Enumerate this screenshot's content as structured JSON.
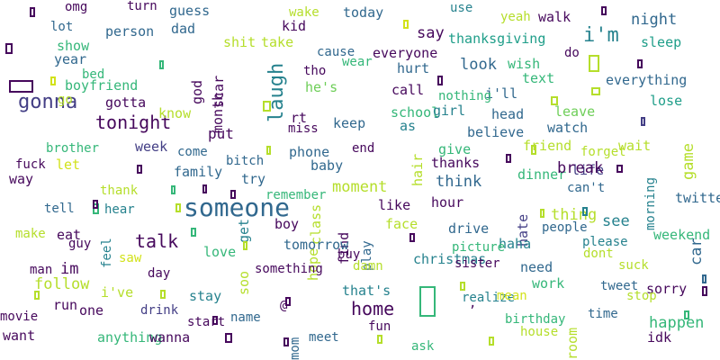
{
  "palette": {
    "dark_purple": "#46085c",
    "indigo": "#433e85",
    "blue": "#31688e",
    "teal": "#26828e",
    "green_teal": "#1f9e89",
    "green": "#35b779",
    "lime": "#6ece58",
    "yellow_green": "#b5de2b",
    "yellow": "#d2e21b"
  },
  "words": [
    {
      "t": "omg",
      "c": "#46085c"
    },
    {
      "t": "turn",
      "c": "#46085c"
    },
    {
      "t": "guess",
      "c": "#31688e"
    },
    {
      "t": "wake",
      "c": "#b5de2b"
    },
    {
      "t": "today",
      "c": "#31688e"
    },
    {
      "t": "use",
      "c": "#26828e"
    },
    {
      "t": "yeah",
      "c": "#b5de2b"
    },
    {
      "t": "walk",
      "c": "#46085c"
    },
    {
      "t": "night",
      "c": "#31688e"
    },
    {
      "t": "lot",
      "c": "#31688e"
    },
    {
      "t": "person",
      "c": "#31688e"
    },
    {
      "t": "dad",
      "c": "#31688e"
    },
    {
      "t": "kid",
      "c": "#46085c"
    },
    {
      "t": "say",
      "c": "#46085c"
    },
    {
      "t": "thanksgiving",
      "c": "#1f9e89"
    },
    {
      "t": "i'm",
      "c": "#26828e"
    },
    {
      "t": "sleep",
      "c": "#1f9e89"
    },
    {
      "t": "show",
      "c": "#35b779"
    },
    {
      "t": "shit",
      "c": "#b5de2b"
    },
    {
      "t": "take",
      "c": "#b5de2b"
    },
    {
      "t": "cause",
      "c": "#31688e"
    },
    {
      "t": "everyone",
      "c": "#46085c"
    },
    {
      "t": "year",
      "c": "#31688e"
    },
    {
      "t": "god",
      "c": "#46085c"
    },
    {
      "t": "wear",
      "c": "#35b779"
    },
    {
      "t": "wish",
      "c": "#35b779"
    },
    {
      "t": "do",
      "c": "#46085c"
    },
    {
      "t": "bed",
      "c": "#35b779"
    },
    {
      "t": "scar",
      "c": "#46085c"
    },
    {
      "t": "tho",
      "c": "#46085c"
    },
    {
      "t": "hurt",
      "c": "#31688e"
    },
    {
      "t": "look",
      "c": "#31688e"
    },
    {
      "t": "text",
      "c": "#35b779"
    },
    {
      "t": "everything",
      "c": "#31688e"
    },
    {
      "t": "boyfriend",
      "c": "#35b779"
    },
    {
      "t": "laugh",
      "c": "#26828e"
    },
    {
      "t": "he's",
      "c": "#6ece58"
    },
    {
      "t": "call",
      "c": "#46085c"
    },
    {
      "t": "i'll",
      "c": "#31688e"
    },
    {
      "t": "gonna",
      "c": "#433e85"
    },
    {
      "t": "go",
      "c": "#b5de2b"
    },
    {
      "t": "gotta",
      "c": "#46085c"
    },
    {
      "t": "month",
      "c": "#46085c"
    },
    {
      "t": "nothing",
      "c": "#35b779"
    },
    {
      "t": "lose",
      "c": "#1f9e89"
    },
    {
      "t": "tonight",
      "c": "#46085c"
    },
    {
      "t": "know",
      "c": "#b5de2b"
    },
    {
      "t": "rt",
      "c": "#46085c"
    },
    {
      "t": "keep",
      "c": "#31688e"
    },
    {
      "t": "school",
      "c": "#35b779"
    },
    {
      "t": "girl",
      "c": "#26828e"
    },
    {
      "t": "head",
      "c": "#31688e"
    },
    {
      "t": "leave",
      "c": "#6ece58"
    },
    {
      "t": "put",
      "c": "#46085c"
    },
    {
      "t": "miss",
      "c": "#46085c"
    },
    {
      "t": "as",
      "c": "#26828e"
    },
    {
      "t": "believe",
      "c": "#31688e"
    },
    {
      "t": "watch",
      "c": "#31688e"
    },
    {
      "t": "game",
      "c": "#b5de2b"
    },
    {
      "t": "brother",
      "c": "#35b779"
    },
    {
      "t": "week",
      "c": "#433e85"
    },
    {
      "t": "come",
      "c": "#31688e"
    },
    {
      "t": "phone",
      "c": "#31688e"
    },
    {
      "t": "end",
      "c": "#46085c"
    },
    {
      "t": "hair",
      "c": "#b5de2b"
    },
    {
      "t": "give",
      "c": "#35b779"
    },
    {
      "t": "friend",
      "c": "#b5de2b"
    },
    {
      "t": "forget",
      "c": "#b5de2b"
    },
    {
      "t": "wait",
      "c": "#b5de2b"
    },
    {
      "t": "fuck",
      "c": "#46085c"
    },
    {
      "t": "let",
      "c": "#d2e21b"
    },
    {
      "t": "bitch",
      "c": "#31688e"
    },
    {
      "t": "baby",
      "c": "#31688e"
    },
    {
      "t": "thanks",
      "c": "#46085c"
    },
    {
      "t": "dinner",
      "c": "#35b779"
    },
    {
      "t": "life",
      "c": "#433e85"
    },
    {
      "t": "way",
      "c": "#46085c"
    },
    {
      "t": "family",
      "c": "#31688e"
    },
    {
      "t": "try",
      "c": "#31688e"
    },
    {
      "t": "moment",
      "c": "#b5de2b"
    },
    {
      "t": "think",
      "c": "#31688e"
    },
    {
      "t": "can't",
      "c": "#31688e"
    },
    {
      "t": "morning",
      "c": "#26828e"
    },
    {
      "t": "thank",
      "c": "#b5de2b"
    },
    {
      "t": "remember",
      "c": "#35b779"
    },
    {
      "t": "hour",
      "c": "#46085c"
    },
    {
      "t": "twitter",
      "c": "#31688e"
    },
    {
      "t": "tell",
      "c": "#31688e"
    },
    {
      "t": "hear",
      "c": "#26828e"
    },
    {
      "t": "someone",
      "c": "#31688e"
    },
    {
      "t": "get",
      "c": "#26828e"
    },
    {
      "t": "class",
      "c": "#b5de2b"
    },
    {
      "t": "like",
      "c": "#46085c"
    },
    {
      "t": "hate",
      "c": "#433e85"
    },
    {
      "t": "thing",
      "c": "#b5de2b"
    },
    {
      "t": "see",
      "c": "#26828e"
    },
    {
      "t": "feel",
      "c": "#26828e"
    },
    {
      "t": "boy",
      "c": "#46085c"
    },
    {
      "t": "play",
      "c": "#31688e"
    },
    {
      "t": "face",
      "c": "#b5de2b"
    },
    {
      "t": "drive",
      "c": "#31688e"
    },
    {
      "t": "people",
      "c": "#31688e"
    },
    {
      "t": "car",
      "c": "#31688e"
    },
    {
      "t": "make",
      "c": "#b5de2b"
    },
    {
      "t": "eat",
      "c": "#46085c"
    },
    {
      "t": "talk",
      "c": "#46085c"
    },
    {
      "t": "love",
      "c": "#35b779"
    },
    {
      "t": "find",
      "c": "#46085c"
    },
    {
      "t": "haha",
      "c": "#26828e"
    },
    {
      "t": "please",
      "c": "#26828e"
    },
    {
      "t": "weekend",
      "c": "#35b779"
    },
    {
      "t": "guy",
      "c": "#46085c"
    },
    {
      "t": "saw",
      "c": "#d2e21b"
    },
    {
      "t": "tomorrow",
      "c": "#31688e"
    },
    {
      "t": "buy",
      "c": "#46085c"
    },
    {
      "t": "picture",
      "c": "#35b779"
    },
    {
      "t": "dont",
      "c": "#b5de2b"
    },
    {
      "t": "soo",
      "c": "#b5de2b"
    },
    {
      "t": "hope",
      "c": "#b5de2b"
    },
    {
      "t": "christmas",
      "c": "#26828e"
    },
    {
      "t": "suck",
      "c": "#b5de2b"
    },
    {
      "t": "man",
      "c": "#46085c"
    },
    {
      "t": "im",
      "c": "#46085c"
    },
    {
      "t": "day",
      "c": "#46085c"
    },
    {
      "t": "something",
      "c": "#46085c"
    },
    {
      "t": "damn",
      "c": "#b5de2b"
    },
    {
      "t": "sister",
      "c": "#46085c"
    },
    {
      "t": "need",
      "c": "#31688e"
    },
    {
      "t": "follow",
      "c": "#b5de2b"
    },
    {
      "t": "work",
      "c": "#35b779"
    },
    {
      "t": "tweet",
      "c": "#31688e"
    },
    {
      "t": "sorry",
      "c": "#46085c"
    },
    {
      "t": "i've",
      "c": "#b5de2b"
    },
    {
      "t": "stay",
      "c": "#26828e"
    },
    {
      "t": "that's",
      "c": "#26828e"
    },
    {
      "t": "realize",
      "c": "#26828e"
    },
    {
      "t": "mean",
      "c": "#d2e21b"
    },
    {
      "t": "stop",
      "c": "#b5de2b"
    },
    {
      "t": "run",
      "c": "#46085c"
    },
    {
      "t": "one",
      "c": "#46085c"
    },
    {
      "t": "drink",
      "c": "#433e85"
    },
    {
      "t": "home",
      "c": "#46085c"
    },
    {
      "t": "time",
      "c": "#31688e"
    },
    {
      "t": "movie",
      "c": "#46085c"
    },
    {
      "t": "start",
      "c": "#46085c"
    },
    {
      "t": "name",
      "c": "#31688e"
    },
    {
      "t": "mom",
      "c": "#31688e"
    },
    {
      "t": "fun",
      "c": "#46085c"
    },
    {
      "t": "birthday",
      "c": "#35b779"
    },
    {
      "t": "room",
      "c": "#b5de2b"
    },
    {
      "t": "happen",
      "c": "#35b779"
    },
    {
      "t": "want",
      "c": "#46085c"
    },
    {
      "t": "anything",
      "c": "#35b779"
    },
    {
      "t": "wanna",
      "c": "#46085c"
    },
    {
      "t": "meet",
      "c": "#31688e"
    },
    {
      "t": "ask",
      "c": "#35b779"
    },
    {
      "t": "house",
      "c": "#b5de2b"
    },
    {
      "t": "idk",
      "c": "#46085c"
    },
    {
      "t": "break",
      "c": "#46085c"
    },
    {
      "t": "@",
      "c": "#46085c"
    },
    {
      "t": ",",
      "c": "#46085c"
    },
    {
      "t": "*",
      "c": "#d2e21b"
    }
  ],
  "glyph_boxes": [
    {
      "c": "#46085c"
    },
    {
      "c": "#46085c"
    },
    {
      "c": "#d2e21b"
    },
    {
      "c": "#46085c"
    },
    {
      "c": "#35b779"
    },
    {
      "c": "#b5de2b"
    },
    {
      "c": "#46085c"
    },
    {
      "c": "#46085c"
    },
    {
      "c": "#d2e21b"
    },
    {
      "c": "#46085c"
    },
    {
      "c": "#b5de2b"
    },
    {
      "c": "#b5de2b"
    },
    {
      "c": "#b5de2b"
    },
    {
      "c": "#46085c"
    },
    {
      "c": "#46085c"
    },
    {
      "c": "#46085c"
    },
    {
      "c": "#35b779"
    },
    {
      "c": "#46085c"
    },
    {
      "c": "#46085c"
    },
    {
      "c": "#35b779"
    },
    {
      "c": "#26828e"
    },
    {
      "c": "#35b779"
    },
    {
      "c": "#46085c"
    },
    {
      "c": "#b5de2b"
    },
    {
      "c": "#b5de2b"
    },
    {
      "c": "#46085c"
    },
    {
      "c": "#b5de2b"
    },
    {
      "c": "#46085c"
    },
    {
      "c": "#35b779"
    },
    {
      "c": "#46085c"
    },
    {
      "c": "#b5de2b"
    },
    {
      "c": "#b5de2b"
    },
    {
      "c": "#b5de2b"
    },
    {
      "c": "#b5de2b"
    },
    {
      "c": "#46085c"
    },
    {
      "c": "#b5de2b"
    },
    {
      "c": "#b5de2b"
    },
    {
      "c": "#46085c"
    },
    {
      "c": "#b5de2b"
    },
    {
      "c": "#35b779"
    },
    {
      "c": "#46085c"
    },
    {
      "c": "#433e85"
    },
    {
      "c": "#31688e"
    }
  ]
}
